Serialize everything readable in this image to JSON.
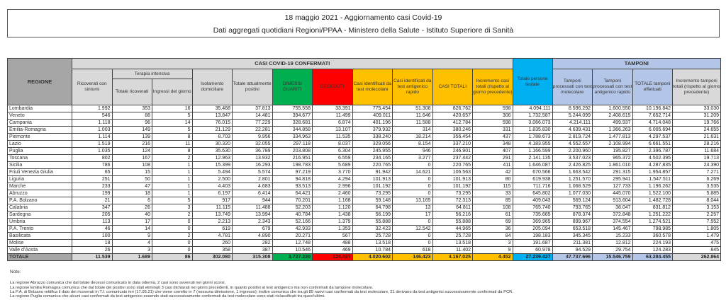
{
  "title": "18 maggio 2021 - Aggiornamento casi Covid-19",
  "subtitle": "Dati aggregati quotidiani Regioni/PPAA - Ministero della Salute - Istituto Superiore di Sanità",
  "headers": {
    "regione": "REGIONE",
    "casi_group": "CASI COVID-19 CONFERMATI",
    "tamponi_group": "TAMPONI",
    "terapia_group": "Terapia intensiva",
    "ricoverati": "Ricoverati con sintomi",
    "totale_ricoverati": "Totale ricoverati",
    "ingressi": "Ingressi del giorno",
    "isolamento": "Isolamento domiciliare",
    "attualmente_positivi": "Totale attualmente positivi",
    "dimessi": "DIMESSI GUARITI",
    "deceduti": "DECEDUTI",
    "casi_molecolare": "Casi identificati da test molecolare",
    "casi_antigenico": "Casi identificati da test antigenico rapido",
    "casi_totali": "CASI TOTALI",
    "incremento_casi": "Incremento casi totali (rispetto al giorno precedente)",
    "persone_testate": "Totale persone testate",
    "tamponi_molecolare": "Tamponi processati con test molecolare",
    "tamponi_antigenico": "Tamponi processati con test antigenico rapido",
    "tamponi_totale": "TOTALE tamponi effettuati",
    "incremento_tamponi": "Incremento tamponi totali (rispetto al giorno precedente)"
  },
  "colors": {
    "dimessi": "#00b050",
    "deceduti": "#ff0000",
    "casi": "#ffc000",
    "persone": "#00b0f0",
    "tamponi": "#b4c6e7",
    "header_grey": "#d9d9d9"
  },
  "rows": [
    [
      "Lombardia",
      "1.992",
      "353",
      "16",
      "35.468",
      "37.813",
      "755.558",
      "33.391",
      "775.454",
      "51.308",
      "826.762",
      "598",
      "4.094.111",
      "8.596.292",
      "1.600.550",
      "10.196.842",
      "33.030"
    ],
    [
      "Veneto",
      "546",
      "88",
      "5",
      "13.847",
      "14.481",
      "394.677",
      "11.499",
      "409.011",
      "11.646",
      "420.657",
      "306",
      "1.732.587",
      "5.244.099",
      "2.408.615",
      "7.652.714",
      "31.209"
    ],
    [
      "Campania",
      "1.118",
      "96",
      "14",
      "76.015",
      "77.229",
      "328.681",
      "6.874",
      "401.196",
      "11.588",
      "412.784",
      "598",
      "3.066.073",
      "4.214.111",
      "499.937",
      "4.714.048",
      "19.766"
    ],
    [
      "Emilia-Romagna",
      "1.003",
      "149",
      "5",
      "21.129",
      "22.281",
      "344.858",
      "13.107",
      "379.932",
      "314",
      "380.246",
      "331",
      "1.835.830",
      "4.639.431",
      "1.366.263",
      "6.005.694",
      "24.655"
    ],
    [
      "Piemonte",
      "1.114",
      "139",
      "8",
      "8.703",
      "9.956",
      "334.963",
      "11.535",
      "338.240",
      "18.214",
      "356.454",
      "437",
      "1.788.673",
      "2.819.724",
      "1.477.813",
      "4.297.537",
      "21.631"
    ],
    [
      "Lazio",
      "1.519",
      "216",
      "11",
      "30.320",
      "32.055",
      "297.118",
      "8.037",
      "329.056",
      "8.154",
      "337.210",
      "348",
      "4.183.955",
      "4.552.557",
      "2.108.994",
      "6.661.551",
      "28.216"
    ],
    [
      "Puglia",
      "1.035",
      "124",
      "8",
      "35.630",
      "36.789",
      "203.808",
      "6.304",
      "245.955",
      "946",
      "246.901",
      "407",
      "1.166.599",
      "2.200.960",
      "195.827",
      "2.396.787",
      "11.684"
    ],
    [
      "Toscana",
      "802",
      "167",
      "2",
      "12.963",
      "13.932",
      "216.951",
      "6.559",
      "234.165",
      "3.277",
      "237.442",
      "291",
      "2.141.135",
      "3.537.023",
      "965.372",
      "4.502.395",
      "19.713"
    ],
    [
      "Sicilia",
      "786",
      "108",
      "1",
      "15.399",
      "16.293",
      "198.783",
      "5.689",
      "220.765",
      "0",
      "220.765",
      "411",
      "1.646.087",
      "2.426.825",
      "1.861.010",
      "4.287.835",
      "24.390"
    ],
    [
      "Friuli Venezia Giulia",
      "65",
      "15",
      "1",
      "5.494",
      "5.574",
      "97.219",
      "3.770",
      "91.942",
      "14.621",
      "106.563",
      "42",
      "670.566",
      "1.663.542",
      "291.315",
      "1.954.857",
      "7.271"
    ],
    [
      "Liguria",
      "251",
      "50",
      "1",
      "2.500",
      "2.801",
      "94.818",
      "4.294",
      "101.913",
      "0",
      "101.913",
      "80",
      "619.938",
      "1.251.570",
      "295.941",
      "1.547.511",
      "6.269"
    ],
    [
      "Marche",
      "233",
      "47",
      "1",
      "4.403",
      "4.683",
      "93.513",
      "2.996",
      "101.192",
      "0",
      "101.192",
      "115",
      "711.716",
      "1.068.529",
      "127.733",
      "1.196.262",
      "3.535"
    ],
    [
      "Abruzzo",
      "199",
      "18",
      "1",
      "6.197",
      "6.414",
      "64.421",
      "2.460",
      "73.295",
      "0",
      "73.295",
      "33",
      "645.802",
      "1.077.030",
      "445.070",
      "1.522.100",
      "5.885"
    ],
    [
      "P.A. Bolzano",
      "21",
      "6",
      "5",
      "917",
      "944",
      "70.201",
      "1.168",
      "59.148",
      "13.165",
      "72.313",
      "85",
      "409.043",
      "569.124",
      "913.604",
      "1.482.728",
      "8.044"
    ],
    [
      "Calabria",
      "347",
      "26",
      "3",
      "11.115",
      "11.488",
      "52.203",
      "1.120",
      "64.798",
      "13",
      "64.811",
      "108",
      "765.740",
      "793.765",
      "38.047",
      "831.812",
      "3.153"
    ],
    [
      "Sardegna",
      "205",
      "40",
      "2",
      "13.749",
      "13.994",
      "40.784",
      "1.438",
      "56.199",
      "17",
      "56.216",
      "61",
      "735.665",
      "878.374",
      "372.848",
      "1.251.222",
      "2.257"
    ],
    [
      "Umbria",
      "113",
      "17",
      "0",
      "2.213",
      "2.343",
      "52.166",
      "1.379",
      "55.888",
      "0",
      "55.888",
      "69",
      "369.965",
      "899.967",
      "374.554",
      "1.274.521",
      "7.552"
    ],
    [
      "P.A. Trento",
      "46",
      "14",
      "0",
      "619",
      "679",
      "42.933",
      "1.353",
      "32.423",
      "12.542",
      "44.965",
      "36",
      "205.094",
      "653.518",
      "145.467",
      "798.985",
      "1.805"
    ],
    [
      "Basilicata",
      "100",
      "9",
      "2",
      "4.781",
      "4.890",
      "20.271",
      "567",
      "25.728",
      "0",
      "25.728",
      "84",
      "198.183",
      "345.345",
      "15.233",
      "360.578",
      "1.479"
    ],
    [
      "Molise",
      "18",
      "4",
      "0",
      "260",
      "282",
      "12.748",
      "488",
      "13.518",
      "0",
      "13.518",
      "3",
      "191.687",
      "211.381",
      "12.812",
      "224.193",
      "475"
    ],
    [
      "Valle d'Aosta",
      "26",
      "3",
      "0",
      "358",
      "387",
      "10.546",
      "469",
      "10.784",
      "618",
      "11.402",
      "9",
      "60.978",
      "94.529",
      "29.754",
      "124.283",
      "845"
    ]
  ],
  "total": [
    "TOTALE",
    "11.539",
    "1.689",
    "86",
    "302.080",
    "315.308",
    "3.727.220",
    "124.497",
    "4.020.602",
    "146.423",
    "4.167.025",
    "4.452",
    "27.239.427",
    "47.737.696",
    "15.546.759",
    "63.284.455",
    "262.864"
  ],
  "notes": {
    "label": "Note:",
    "lines": [
      "La regione Abruzzo comunica che dal totale decessi comunicato in data odierna, 2 casi sono avvenuti nei giorni scorsi.",
      "La regione Emilia Romagna comunica che dal totale dei positivi sono stati eliminati 3 casi dichiarati nei giorni precedenti, in quanto positivi al test antigenico ma non confermati da tampone molecolare.",
      "La P.A. di Bolzano rettifica il dato dei ricoverati in T.I. comunicato ieri (17.05.21) che viene corretto in 7 (nessuna dimissione, 1 ingresso); inoltre comunica che tra gli 85 nuovi casi confermati da test molecolare, 21 derivano da test antigenici successivamente confermati da PCR.",
      "La regione Puglia comunica che alcuni casi confermati da test antigenico essendo stati successivamente confermati da test molecolare sono stati riclassificati tra quest'ultimi."
    ]
  }
}
